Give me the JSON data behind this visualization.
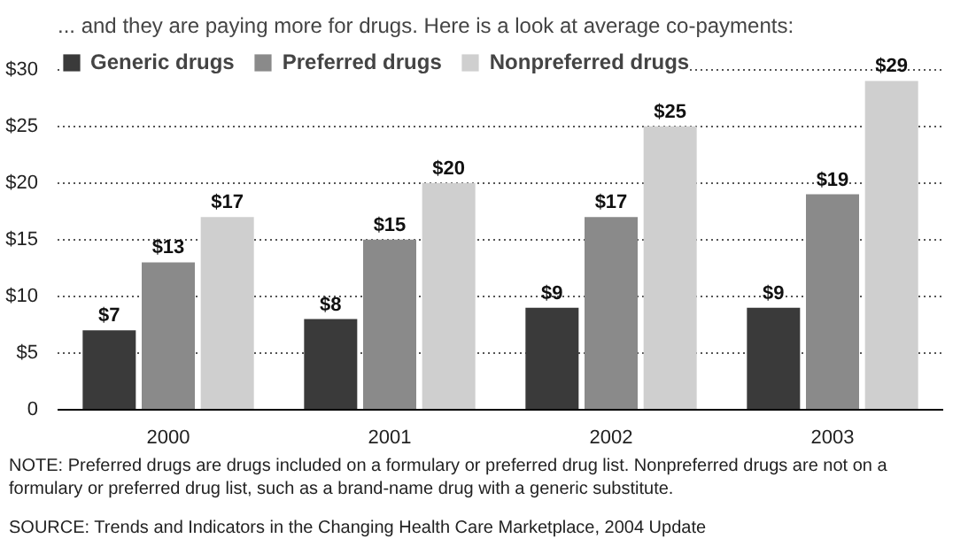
{
  "chart_data": {
    "type": "bar",
    "title": "... and they are paying more for drugs. Here is a look at average co-payments:",
    "categories": [
      "2000",
      "2001",
      "2002",
      "2003"
    ],
    "series": [
      {
        "name": "Generic drugs",
        "color": "#3a3a3a",
        "values": [
          7,
          8,
          9,
          9
        ],
        "value_labels": [
          "$7",
          "$8",
          "$9",
          "$9"
        ]
      },
      {
        "name": "Preferred drugs",
        "color": "#8a8a8a",
        "values": [
          13,
          15,
          17,
          19
        ],
        "value_labels": [
          "$13",
          "$15",
          "$17",
          "$19"
        ]
      },
      {
        "name": "Nonpreferred drugs",
        "color": "#cfcfcf",
        "values": [
          17,
          20,
          25,
          29
        ],
        "value_labels": [
          "$17",
          "$20",
          "$25",
          "$29"
        ]
      }
    ],
    "ylim": [
      0,
      32
    ],
    "yticks": [
      {
        "value": 0,
        "label": "0"
      },
      {
        "value": 5,
        "label": "$5"
      },
      {
        "value": 10,
        "label": "$10"
      },
      {
        "value": 15,
        "label": "$15"
      },
      {
        "value": 20,
        "label": "$20"
      },
      {
        "value": 25,
        "label": "$25"
      },
      {
        "value": 30,
        "label": "$30"
      }
    ],
    "grid": "y",
    "legend": "top left",
    "annotations": [
      "NOTE: Preferred drugs are drugs included on a formulary or preferred drug list. Nonpreferred drugs are not on a formulary or preferred drug list, such as a brand-name drug with a generic substitute.",
      "SOURCE: Trends and Indicators in the Changing Health Care Marketplace, 2004 Update"
    ]
  }
}
